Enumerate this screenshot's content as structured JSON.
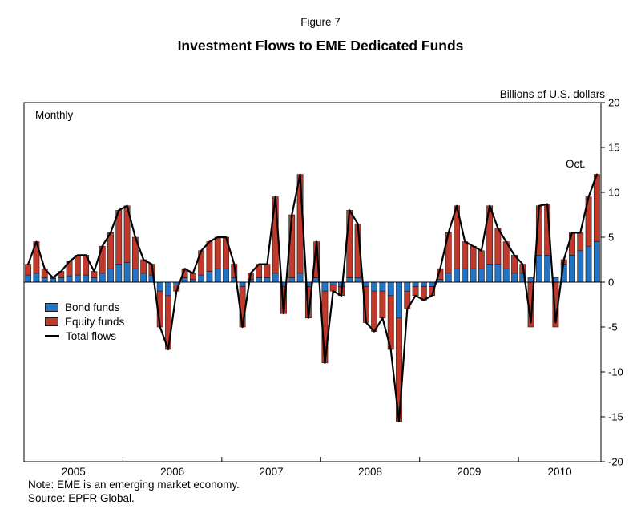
{
  "figure": {
    "label": "Figure 7",
    "title": "Investment Flows to EME Dedicated Funds",
    "units_label": "Billions of U.S. dollars",
    "frequency_label": "Monthly",
    "last_point_label": "Oct.",
    "note": "Note: EME is an emerging market economy.",
    "source": "Source: EPFR Global."
  },
  "chart_data": {
    "type": "bar",
    "subtype": "stacked-bars-with-total-line",
    "title": "Investment Flows to EME Dedicated Funds",
    "ylabel": "Billions of U.S. dollars",
    "ylim": [
      -20,
      20
    ],
    "ytick_step": 5,
    "y_axis_side": "right",
    "grid": false,
    "legend_position": "middle-left",
    "year_labels": [
      "2005",
      "2006",
      "2007",
      "2008",
      "2009",
      "2010"
    ],
    "x": [
      "2005-01",
      "2005-02",
      "2005-03",
      "2005-04",
      "2005-05",
      "2005-06",
      "2005-07",
      "2005-08",
      "2005-09",
      "2005-10",
      "2005-11",
      "2005-12",
      "2006-01",
      "2006-02",
      "2006-03",
      "2006-04",
      "2006-05",
      "2006-06",
      "2006-07",
      "2006-08",
      "2006-09",
      "2006-10",
      "2006-11",
      "2006-12",
      "2007-01",
      "2007-02",
      "2007-03",
      "2007-04",
      "2007-05",
      "2007-06",
      "2007-07",
      "2007-08",
      "2007-09",
      "2007-10",
      "2007-11",
      "2007-12",
      "2008-01",
      "2008-02",
      "2008-03",
      "2008-04",
      "2008-05",
      "2008-06",
      "2008-07",
      "2008-08",
      "2008-09",
      "2008-10",
      "2008-11",
      "2008-12",
      "2009-01",
      "2009-02",
      "2009-03",
      "2009-04",
      "2009-05",
      "2009-06",
      "2009-07",
      "2009-08",
      "2009-09",
      "2009-10",
      "2009-11",
      "2009-12",
      "2010-01",
      "2010-02",
      "2010-03",
      "2010-04",
      "2010-05",
      "2010-06",
      "2010-07",
      "2010-08",
      "2010-09",
      "2010-10"
    ],
    "series": [
      {
        "name": "Bond funds",
        "kind": "bar",
        "color": "#2474c5",
        "values": [
          0.8,
          1.0,
          0.5,
          0.4,
          0.5,
          0.7,
          0.8,
          0.8,
          0.5,
          1.0,
          1.5,
          2.0,
          2.2,
          1.5,
          1.0,
          0.8,
          -1.0,
          -1.5,
          -0.3,
          0.5,
          0.3,
          0.8,
          1.2,
          1.5,
          1.5,
          0.5,
          -0.5,
          0.3,
          0.5,
          0.5,
          1.0,
          -0.5,
          0.5,
          1.0,
          -0.5,
          0.5,
          -1.0,
          -0.3,
          -0.5,
          0.5,
          0.5,
          -0.5,
          -1.0,
          -1.0,
          -1.5,
          -4.0,
          -1.0,
          -0.5,
          -0.5,
          -0.5,
          0.3,
          1.0,
          1.5,
          1.5,
          1.5,
          1.5,
          2.0,
          2.0,
          1.5,
          1.0,
          1.0,
          0.5,
          3.0,
          3.0,
          0.5,
          2.0,
          3.0,
          3.5,
          4.0,
          4.5
        ]
      },
      {
        "name": "Equity funds",
        "kind": "bar",
        "color": "#c0392b",
        "values": [
          1.2,
          3.5,
          1.0,
          0.1,
          0.7,
          1.6,
          2.2,
          2.2,
          0.7,
          3.0,
          4.0,
          6.0,
          6.3,
          3.5,
          1.5,
          1.2,
          -4.0,
          -6.0,
          -0.7,
          1.0,
          0.7,
          2.7,
          3.3,
          3.5,
          3.5,
          1.5,
          -4.5,
          0.7,
          1.5,
          1.5,
          8.5,
          -3.0,
          7.0,
          11.0,
          -3.5,
          4.0,
          -8.0,
          -0.7,
          -1.0,
          7.5,
          6.0,
          -4.0,
          -4.5,
          -3.0,
          -6.0,
          -11.5,
          -2.0,
          -1.0,
          -1.5,
          -1.0,
          1.2,
          4.5,
          7.0,
          3.0,
          2.5,
          2.0,
          6.5,
          4.0,
          3.0,
          2.0,
          1.0,
          -5.0,
          5.5,
          5.7,
          -5.0,
          0.5,
          2.5,
          2.0,
          5.5,
          7.5
        ]
      },
      {
        "name": "Total flows",
        "kind": "line",
        "color": "#000000",
        "values": [
          2.0,
          4.5,
          1.5,
          0.5,
          1.2,
          2.3,
          3.0,
          3.0,
          1.2,
          4.0,
          5.5,
          8.0,
          8.5,
          5.0,
          2.5,
          2.0,
          -5.0,
          -7.5,
          -1.0,
          1.5,
          1.0,
          3.5,
          4.5,
          5.0,
          5.0,
          2.0,
          -5.0,
          1.0,
          2.0,
          2.0,
          9.5,
          -3.5,
          7.5,
          12.0,
          -4.0,
          4.5,
          -9.0,
          -1.0,
          -1.5,
          8.0,
          6.5,
          -4.5,
          -5.5,
          -4.0,
          -7.5,
          -15.5,
          -3.0,
          -1.5,
          -2.0,
          -1.5,
          1.5,
          5.5,
          8.5,
          4.5,
          4.0,
          3.5,
          8.5,
          6.0,
          4.5,
          3.0,
          2.0,
          -4.5,
          8.5,
          8.7,
          -4.5,
          2.5,
          5.5,
          5.5,
          9.5,
          12.0
        ]
      }
    ],
    "annotations": [
      {
        "text": "Oct.",
        "x": "2010-10"
      },
      {
        "text": "Monthly",
        "position": "top-left"
      }
    ]
  }
}
